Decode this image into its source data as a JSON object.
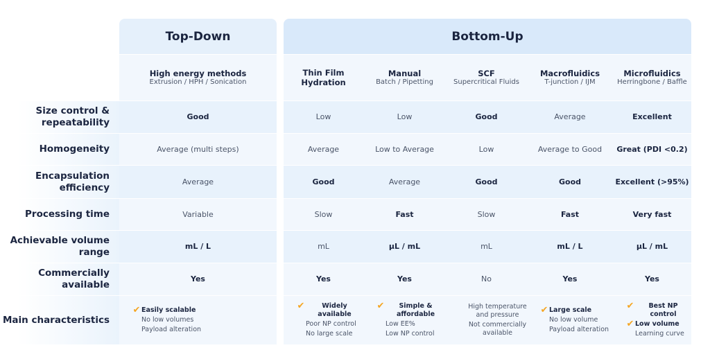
{
  "groups": {
    "top_down": "Top-Down",
    "bottom_up": "Bottom-Up"
  },
  "methods": [
    {
      "name": "High energy methods",
      "sub": "Extrusion / HPH / Sonication"
    },
    {
      "name": "Thin Film Hydration",
      "sub": ""
    },
    {
      "name": "Manual",
      "sub": "Batch / Pipetting"
    },
    {
      "name": "SCF",
      "sub": "Supercritical Fluids"
    },
    {
      "name": "Macrofluidics",
      "sub": "T-junction / IJM"
    },
    {
      "name": "Microfluidics",
      "sub": "Herringbone / Baffle"
    }
  ],
  "rows": [
    {
      "label": "Size control & repeatability",
      "cells": [
        {
          "text": "Good",
          "bold": true
        },
        {
          "text": "Low"
        },
        {
          "text": "Low"
        },
        {
          "text": "Good",
          "bold": true
        },
        {
          "text": "Average"
        },
        {
          "text": "Excellent",
          "bold": true
        }
      ]
    },
    {
      "label": "Homogeneity",
      "cells": [
        {
          "text": "Average (multi steps)"
        },
        {
          "text": "Average"
        },
        {
          "text": "Low to Average"
        },
        {
          "text": "Low"
        },
        {
          "text": "Average to Good"
        },
        {
          "text": "Great (PDI <0.2)",
          "bold": true
        }
      ]
    },
    {
      "label": "Encapsulation efficiency",
      "cells": [
        {
          "text": "Average"
        },
        {
          "text": "Good",
          "bold": true
        },
        {
          "text": "Average"
        },
        {
          "text": "Good",
          "bold": true
        },
        {
          "text": "Good",
          "bold": true
        },
        {
          "text": "Excellent (>95%)",
          "bold": true
        }
      ]
    },
    {
      "label": "Processing time",
      "cells": [
        {
          "text": "Variable"
        },
        {
          "text": "Slow"
        },
        {
          "text": "Fast",
          "bold": true
        },
        {
          "text": "Slow"
        },
        {
          "text": "Fast",
          "bold": true
        },
        {
          "text": "Very fast",
          "bold": true
        }
      ]
    },
    {
      "label": "Achievable volume range",
      "cells": [
        {
          "text": "mL / L",
          "bold": true
        },
        {
          "text": "mL"
        },
        {
          "text": "µL / mL",
          "bold": true
        },
        {
          "text": "mL"
        },
        {
          "text": "mL / L",
          "bold": true
        },
        {
          "text": "µL / mL",
          "bold": true
        }
      ]
    },
    {
      "label": "Commercially available",
      "cells": [
        {
          "text": "Yes",
          "bold": true
        },
        {
          "text": "Yes",
          "bold": true
        },
        {
          "text": "Yes",
          "bold": true
        },
        {
          "text": "No"
        },
        {
          "text": "Yes",
          "bold": true
        },
        {
          "text": "Yes",
          "bold": true
        }
      ]
    }
  ],
  "characteristics": {
    "label": "Main characteristics",
    "cells": [
      [
        {
          "text": "Easily scalable",
          "pro": true
        },
        {
          "text": "No low volumes"
        },
        {
          "text": "Payload alteration"
        }
      ],
      [
        {
          "text": "Widely available",
          "pro": true
        },
        {
          "text": "Poor NP control"
        },
        {
          "text": "No large scale"
        }
      ],
      [
        {
          "text": "Simple & affordable",
          "pro": true
        },
        {
          "text": "Low EE%"
        },
        {
          "text": "Low NP control"
        }
      ],
      [
        {
          "text": "High temperature and pressure"
        },
        {
          "text": "Not commercially available"
        }
      ],
      [
        {
          "text": "Large scale",
          "pro": true
        },
        {
          "text": "No low volume"
        },
        {
          "text": "Payload alteration"
        }
      ],
      [
        {
          "text": "Best NP control",
          "pro": true
        },
        {
          "text": "Low volume",
          "pro": true
        },
        {
          "text": "Learning curve"
        }
      ]
    ]
  },
  "icons": {
    "pro": "checkmark-icon",
    "check_color": "#f5a623"
  }
}
